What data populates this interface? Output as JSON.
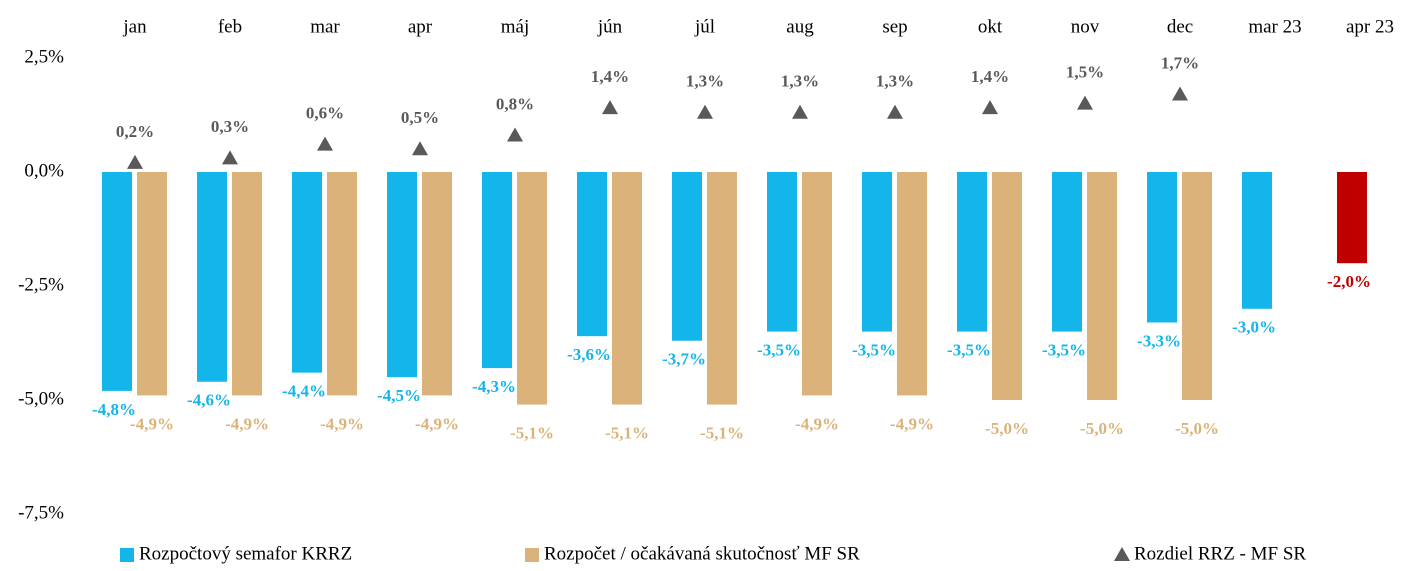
{
  "chart_data": {
    "type": "bar",
    "categories": [
      "jan",
      "feb",
      "mar",
      "apr",
      "máj",
      "jún",
      "júl",
      "aug",
      "sep",
      "okt",
      "nov",
      "dec",
      "mar 23",
      "apr 23"
    ],
    "ylim": [
      -7.5,
      2.5
    ],
    "yticks": [
      {
        "value": 2.5,
        "label": "2,5%"
      },
      {
        "value": 0,
        "label": "0,0%"
      },
      {
        "value": -2.5,
        "label": "-2,5%"
      },
      {
        "value": -5,
        "label": "-5,0%"
      },
      {
        "value": -7.5,
        "label": "-7,5%"
      }
    ],
    "legend": "bottom",
    "series": [
      {
        "name": "Rozpočtový semafor KRRZ",
        "type": "bar",
        "color": "#13b5ea",
        "point_colors": [
          null,
          null,
          null,
          null,
          null,
          null,
          null,
          null,
          null,
          null,
          null,
          null,
          null,
          "#c00000"
        ],
        "values": [
          -4.8,
          -4.6,
          -4.4,
          -4.5,
          -4.3,
          -3.6,
          -3.7,
          -3.5,
          -3.5,
          -3.5,
          -3.5,
          -3.3,
          -3.0,
          -2.0
        ],
        "value_labels": [
          "-4,8%",
          "-4,6%",
          "-4,4%",
          "-4,5%",
          "-4,3%",
          "-3,6%",
          "-3,7%",
          "-3,5%",
          "-3,5%",
          "-3,5%",
          "-3,5%",
          "-3,3%",
          "-3,0%",
          "-2,0%"
        ]
      },
      {
        "name": "Rozpočet / očakávaná skutočnosť MF SR",
        "type": "bar",
        "color": "#dbb37a",
        "values": [
          -4.9,
          -4.9,
          -4.9,
          -4.9,
          -5.1,
          -5.1,
          -5.1,
          -4.9,
          -4.9,
          -5.0,
          -5.0,
          -5.0,
          null,
          null
        ],
        "value_labels": [
          "-4,9%",
          "-4,9%",
          "-4,9%",
          "-4,9%",
          "-5,1%",
          "-5,1%",
          "-5,1%",
          "-4,9%",
          "-4,9%",
          "-5,0%",
          "-5,0%",
          "-5,0%",
          null,
          null
        ]
      },
      {
        "name": "Rozdiel RRZ - MF SR",
        "type": "marker",
        "color": "#595959",
        "values": [
          0.2,
          0.3,
          0.6,
          0.5,
          0.8,
          1.4,
          1.3,
          1.3,
          1.3,
          1.4,
          1.5,
          1.7,
          null,
          null
        ],
        "value_labels": [
          "0,2%",
          "0,3%",
          "0,6%",
          "0,5%",
          "0,8%",
          "1,4%",
          "1,3%",
          "1,3%",
          "1,3%",
          "1,4%",
          "1,5%",
          "1,7%",
          null,
          null
        ]
      }
    ]
  }
}
